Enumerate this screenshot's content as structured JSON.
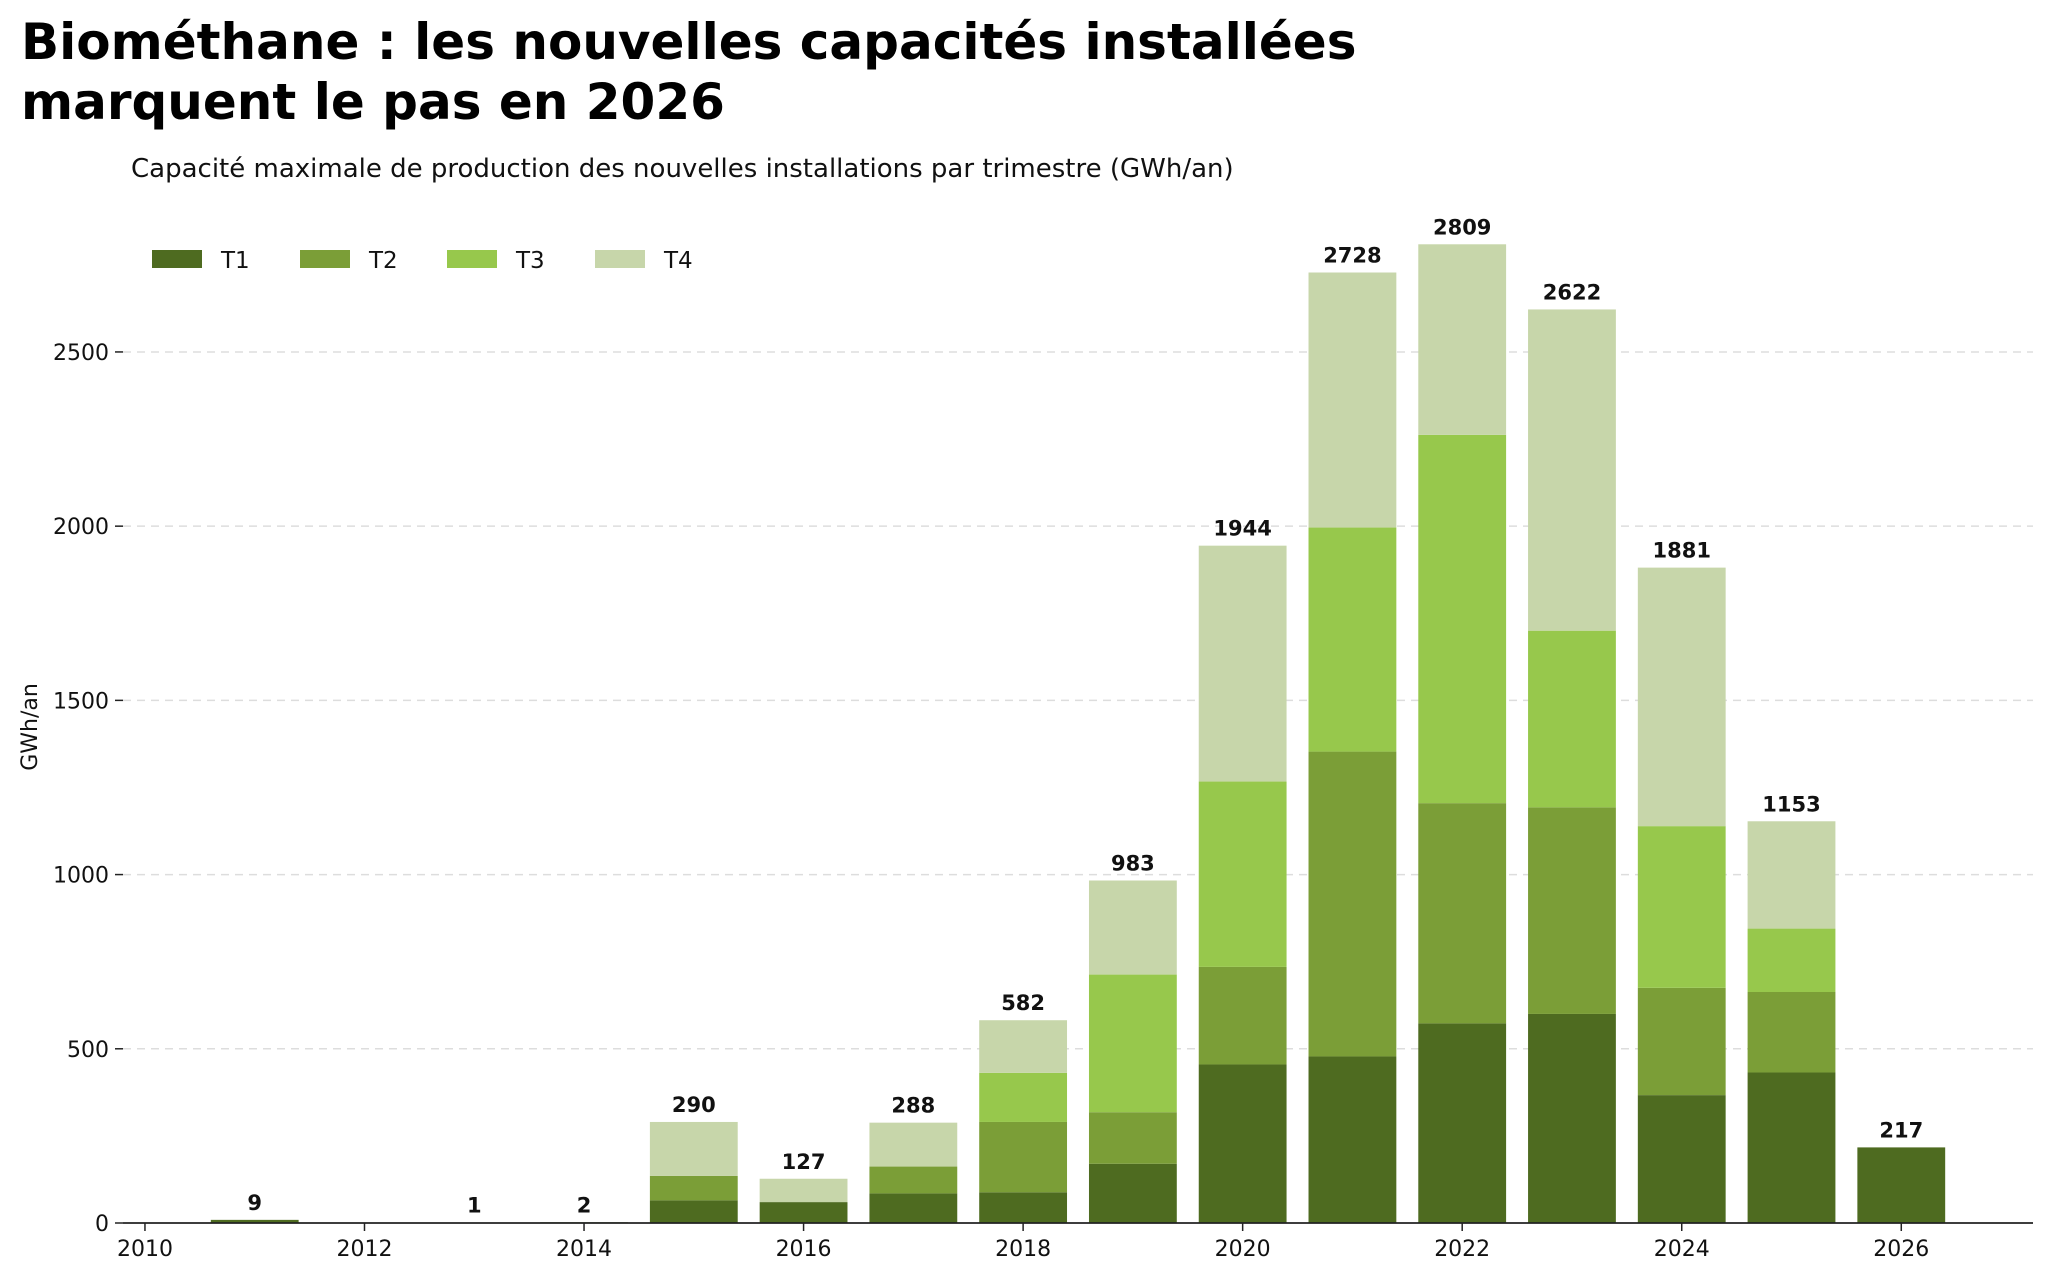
{
  "title_line1": "Biométhane : les nouvelles capacités installées",
  "title_line2": "marquent le pas en 2026",
  "subtitle": "Capacité maximale de production des nouvelles installations par trimestre (GWh/an)",
  "colors": {
    "T1": "#4e6b20",
    "T2": "#7b9e37",
    "T3": "#97c84c",
    "T4": "#c7d6aa",
    "grid": "#dddddd",
    "axis": "#222222"
  },
  "chart_data": {
    "type": "bar",
    "stacked": true,
    "ylabel": "GWh/an",
    "xlabel": "",
    "xlim": [
      2009.8,
      2027.2
    ],
    "ylim": [
      0,
      2850
    ],
    "x_ticks": [
      2010,
      2012,
      2014,
      2016,
      2018,
      2020,
      2022,
      2024,
      2026
    ],
    "y_ticks": [
      0,
      500,
      1000,
      1500,
      2000,
      2500
    ],
    "grid": "horizontal dashed",
    "legend": "top-left",
    "x": [
      2011,
      2013,
      2014,
      2015,
      2016,
      2017,
      2018,
      2019,
      2020,
      2021,
      2022,
      2023,
      2024,
      2025,
      2026
    ],
    "series": [
      {
        "name": "T1",
        "values": [
          9,
          1,
          2,
          65,
          60,
          85,
          88,
          170,
          455,
          478,
          573,
          600,
          367,
          432,
          217
        ]
      },
      {
        "name": "T2",
        "values": [
          0,
          0,
          0,
          70,
          0,
          77,
          202,
          148,
          280,
          875,
          632,
          593,
          308,
          231,
          0
        ]
      },
      {
        "name": "T3",
        "values": [
          0,
          0,
          0,
          0,
          0,
          0,
          141,
          395,
          532,
          643,
          1057,
          507,
          464,
          182,
          0
        ]
      },
      {
        "name": "T4",
        "values": [
          0,
          0,
          0,
          155,
          67,
          126,
          151,
          270,
          677,
          732,
          547,
          922,
          742,
          308,
          0
        ]
      }
    ],
    "totals": [
      9,
      1,
      2,
      290,
      127,
      288,
      582,
      983,
      1944,
      2728,
      2809,
      2622,
      1881,
      1153,
      217
    ]
  }
}
